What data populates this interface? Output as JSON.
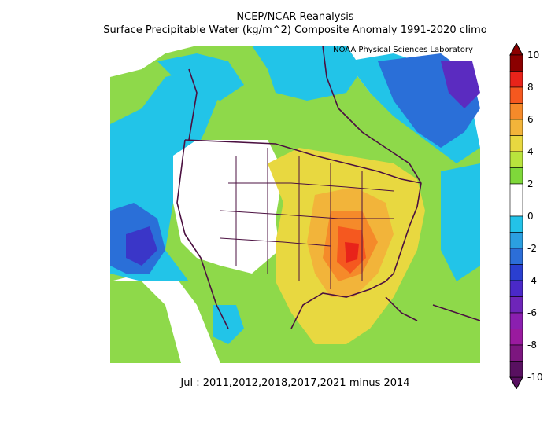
{
  "header": {
    "title": "NCEP/NCAR Reanalysis",
    "subtitle": "Surface Precipitable Water (kg/m^2) Composite Anomaly 1991-2020 climo",
    "credit": "NOAA Physical Sciences Laboratory"
  },
  "footer": {
    "caption": "Jul : 2011,2012,2018,2017,2021 minus 2014"
  },
  "colorbar": {
    "labels": [
      "10",
      "8",
      "6",
      "4",
      "2",
      "0",
      "-2",
      "-4",
      "-6",
      "-8",
      "-10"
    ],
    "colors": [
      "#8b0000",
      "#e8231a",
      "#f5581f",
      "#f58a2a",
      "#f2b43a",
      "#e8d840",
      "#b9e33d",
      "#7fd83a",
      "#ffffff",
      "#ffffff",
      "#23c2e8",
      "#2b9fe0",
      "#2c6ed8",
      "#2a3fd0",
      "#4a29c8",
      "#6e25b9",
      "#8b1fb0",
      "#9a1a9f",
      "#7c167f",
      "#581060"
    ]
  }
}
